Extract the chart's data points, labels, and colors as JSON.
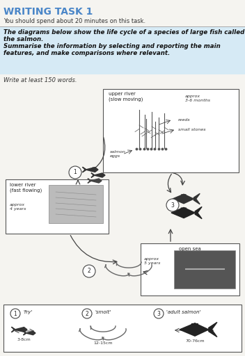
{
  "title": "WRITING TASK 1",
  "subtitle": "You should spend about 20 minutes on this task.",
  "instr1": "The diagrams below show the life cycle of a species of large fish called the salmon.",
  "instr2": "Summarise the information by selecting and reporting the main features, and make comparisons where relevant.",
  "note": "Write at least 150 words.",
  "box_bg": "#d6eaf5",
  "page_bg": "#f5f4f0",
  "title_color": "#4a86c8",
  "upper_river_label": "upper river\n(slow moving)",
  "upper_river_time": "approx\n3-6 months",
  "lower_river_label": "lower river\n(fast flowing)",
  "lower_river_time": "approx\n4 years",
  "open_sea_label": "open sea",
  "open_sea_time": "approx\n5 years",
  "reeds_label": "reeds",
  "stones_label": "small stones",
  "eggs_label": "salmon\neggs",
  "legend_fry": "'fry'",
  "legend_smolt": "'smolt'",
  "legend_adult": "'adult salmon'",
  "fry_size": "3-8cm",
  "smolt_size": "12-15cm",
  "adult_size": "70-76cm"
}
